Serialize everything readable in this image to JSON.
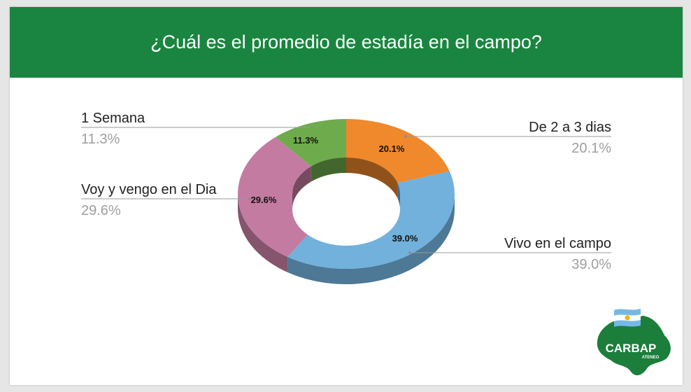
{
  "header": {
    "title": "¿Cuál es el promedio de estadía en el campo?"
  },
  "chart_data": {
    "type": "pie",
    "subtype": "donut-3d",
    "title": "¿Cuál es el promedio de estadía en el campo?",
    "slices": [
      {
        "label": "De 2 a 3 dias",
        "value": 20.1,
        "display": "20.1%",
        "color": "#f0882c"
      },
      {
        "label": "Vivo en el campo",
        "value": 39.0,
        "display": "39.0%",
        "color": "#71b1dc"
      },
      {
        "label": "Voy y vengo en el Dia",
        "value": 29.6,
        "display": "29.6%",
        "color": "#c47ba1"
      },
      {
        "label": "1 Semana",
        "value": 11.3,
        "display": "11.3%",
        "color": "#6eab4c"
      }
    ],
    "legend": "none"
  },
  "logo": {
    "name": "CARBAP",
    "sub": "ATENEO",
    "icon": "carbap-logo-icon"
  }
}
